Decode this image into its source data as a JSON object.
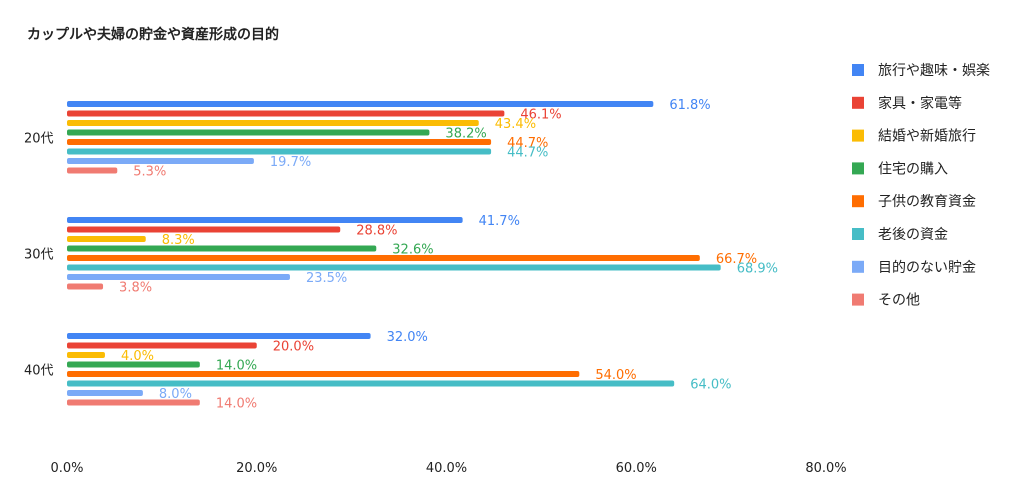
{
  "chart_data": {
    "type": "bar",
    "orientation": "horizontal",
    "title": "カップルや夫婦の貯金や資産形成の目的",
    "categories": [
      "20代",
      "30代",
      "40代"
    ],
    "series": [
      {
        "name": "旅行や趣味・娯楽",
        "color": "#4285F4",
        "values": [
          61.8,
          41.7,
          32.0
        ],
        "labels": [
          "61.8%",
          "41.7%",
          "32.0%"
        ]
      },
      {
        "name": "家具・家電等",
        "color": "#EA4335",
        "values": [
          46.1,
          28.8,
          20.0
        ],
        "labels": [
          "46.1%",
          "28.8%",
          "20.0%"
        ]
      },
      {
        "name": "結婚や新婚旅行",
        "color": "#FBBC04",
        "values": [
          43.4,
          8.3,
          4.0
        ],
        "labels": [
          "43.4%",
          "8.3%",
          "4.0%"
        ]
      },
      {
        "name": "住宅の購入",
        "color": "#34A853",
        "values": [
          38.2,
          32.6,
          14.0
        ],
        "labels": [
          "38.2%",
          "32.6%",
          "14.0%"
        ]
      },
      {
        "name": "子供の教育資金",
        "color": "#FF6D01",
        "values": [
          44.7,
          66.7,
          54.0
        ],
        "labels": [
          "44.7%",
          "66.7%",
          "54.0%"
        ]
      },
      {
        "name": "老後の資金",
        "color": "#46BDC6",
        "values": [
          44.7,
          68.9,
          64.0
        ],
        "labels": [
          "44.7%",
          "68.9%",
          "64.0%"
        ]
      },
      {
        "name": "目的のない貯金",
        "color": "#7BAAF7",
        "values": [
          19.7,
          23.5,
          8.0
        ],
        "labels": [
          "19.7%",
          "23.5%",
          "8.0%"
        ]
      },
      {
        "name": "その他",
        "color": "#F07B72",
        "values": [
          5.3,
          3.8,
          14.0
        ],
        "labels": [
          "5.3%",
          "3.8%",
          "14.0%"
        ]
      }
    ],
    "xlim": [
      0,
      80
    ],
    "xticks": [
      "0.0%",
      "20.0%",
      "40.0%",
      "60.0%",
      "80.0%"
    ],
    "xtick_values": [
      0,
      20,
      40,
      60,
      80
    ],
    "grid": false,
    "legend": "right"
  }
}
